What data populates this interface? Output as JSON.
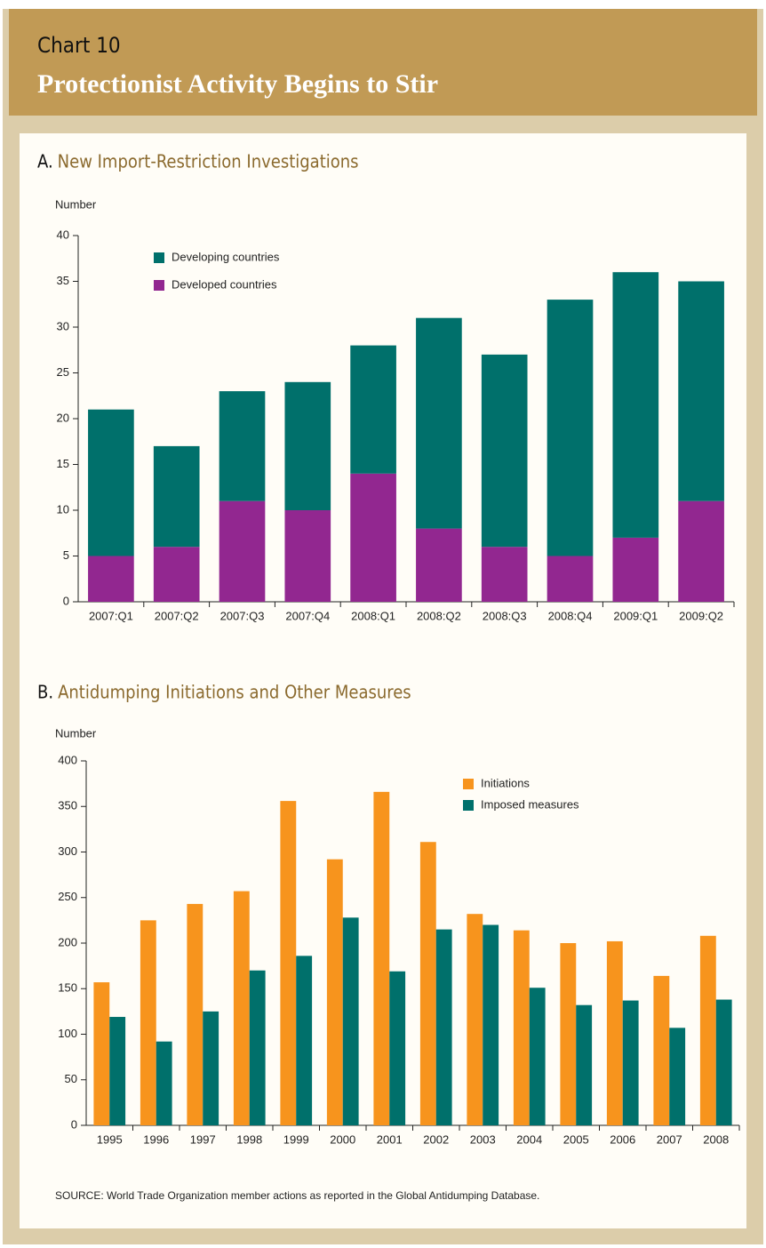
{
  "header": {
    "label": "Chart 10",
    "title": "Protectionist Activity Begins to Stir"
  },
  "source": "SOURCE: World Trade Organization member actions as reported in the Global Antidumping Database.",
  "chart_data": [
    {
      "type": "stacked-bar",
      "panel": "A.",
      "title": "New Import-Restriction Investigations",
      "y_label": "Number",
      "categories": [
        "2007:Q1",
        "2007:Q2",
        "2007:Q3",
        "2007:Q4",
        "2008:Q1",
        "2008:Q2",
        "2008:Q3",
        "2008:Q4",
        "2009:Q1",
        "2009:Q2"
      ],
      "series": [
        {
          "name": "Developed countries",
          "color": "#922790",
          "values": [
            5,
            6,
            11,
            10,
            14,
            8,
            6,
            5,
            7,
            11
          ]
        },
        {
          "name": "Developing countries",
          "color": "#00706b",
          "values": [
            16,
            11,
            12,
            14,
            14,
            23,
            21,
            28,
            29,
            24
          ]
        }
      ],
      "ylim": [
        0,
        40
      ],
      "yticks": [
        0,
        5,
        10,
        15,
        20,
        25,
        30,
        35,
        40
      ],
      "grid": false,
      "legend": "top-left"
    },
    {
      "type": "grouped-bar",
      "panel": "B.",
      "title": "Antidumping Initiations and Other Measures",
      "y_label": "Number",
      "categories": [
        "1995",
        "1996",
        "1997",
        "1998",
        "1999",
        "2000",
        "2001",
        "2002",
        "2003",
        "2004",
        "2005",
        "2006",
        "2007",
        "2008"
      ],
      "series": [
        {
          "name": "Initiations",
          "color": "#f7941d",
          "values": [
            157,
            225,
            243,
            257,
            356,
            292,
            366,
            311,
            232,
            214,
            200,
            202,
            164,
            208
          ]
        },
        {
          "name": "Imposed measures",
          "color": "#00706b",
          "values": [
            119,
            92,
            125,
            170,
            186,
            228,
            169,
            215,
            220,
            151,
            132,
            137,
            107,
            138
          ]
        }
      ],
      "ylim": [
        0,
        400
      ],
      "yticks": [
        0,
        50,
        100,
        150,
        200,
        250,
        300,
        350,
        400
      ],
      "grid": false,
      "legend": "top-right"
    }
  ]
}
